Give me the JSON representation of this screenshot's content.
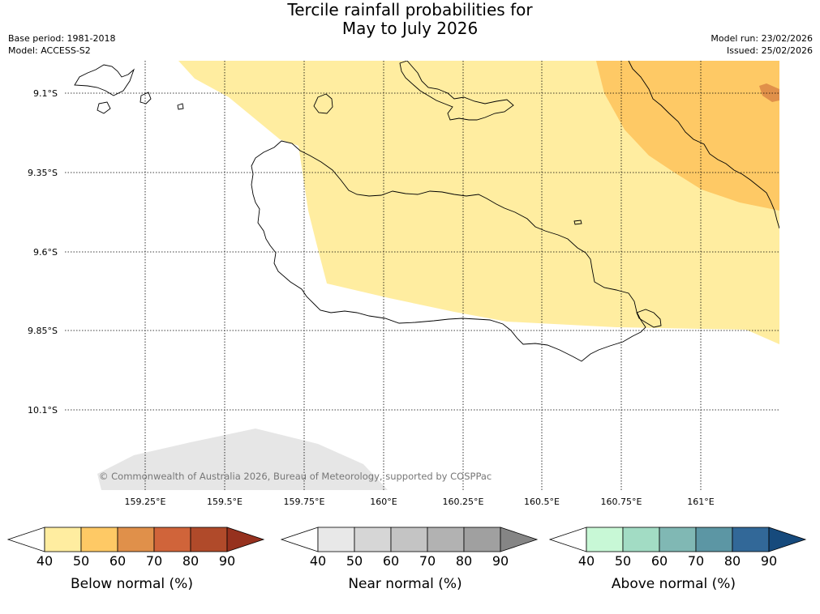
{
  "title": {
    "line1": "Tercile rainfall probabilities for",
    "line2": "May to July 2026"
  },
  "meta": {
    "base_period": "Base period: 1981-2018",
    "model": "Model: ACCESS-S2",
    "model_run": "Model run: 23/02/2026",
    "issued": "Issued: 25/02/2026"
  },
  "map": {
    "lat_ticks": [
      "9.1°S",
      "9.35°S",
      "9.6°S",
      "9.85°S",
      "10.1°S"
    ],
    "lon_ticks": [
      "159.25°E",
      "159.5°E",
      "159.75°E",
      "160°E",
      "160.25°E",
      "160.5°E",
      "160.75°E",
      "161°E"
    ],
    "copyright": "© Commonwealth of Australia 2026, Bureau of Meteorology, supported by COSPPac",
    "regions": [
      {
        "category": "Below normal",
        "probability_bin": "40-50",
        "color": "#ffeda0"
      },
      {
        "category": "Below normal",
        "probability_bin": "50-60",
        "color": "#fec965"
      },
      {
        "category": "Below normal",
        "probability_bin": "60-70",
        "color": "#e0904a"
      },
      {
        "category": "Near normal",
        "probability_bin": "40-50",
        "color": "#e6e6e6"
      }
    ]
  },
  "legends": [
    {
      "label": "Below normal (%)",
      "ticks": [
        "40",
        "50",
        "60",
        "70",
        "80",
        "90"
      ],
      "colors": [
        "#ffeda0",
        "#fec965",
        "#e0904a",
        "#d0643a",
        "#b04a2a",
        "#96311e"
      ]
    },
    {
      "label": "Near normal (%)",
      "ticks": [
        "40",
        "50",
        "60",
        "70",
        "80",
        "90"
      ],
      "colors": [
        "#e8e8e8",
        "#d6d6d6",
        "#c4c4c4",
        "#b2b2b2",
        "#a0a0a0",
        "#858585"
      ]
    },
    {
      "label": "Above normal (%)",
      "ticks": [
        "40",
        "50",
        "60",
        "70",
        "80",
        "90"
      ],
      "colors": [
        "#c8f8d6",
        "#a2dcc4",
        "#80b8b4",
        "#5c96a4",
        "#326898",
        "#164a7c"
      ]
    }
  ]
}
